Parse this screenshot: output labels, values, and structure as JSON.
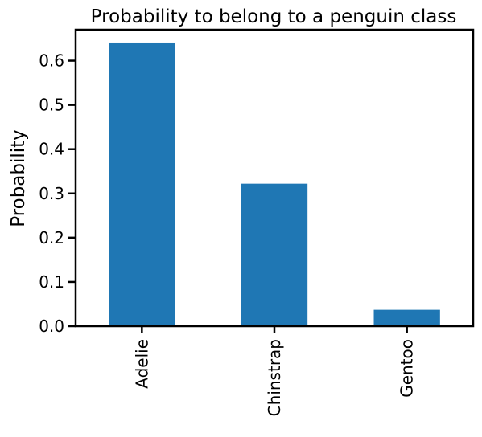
{
  "chart_data": {
    "type": "bar",
    "title": "Probability to belong to a penguin class",
    "xlabel": "",
    "ylabel": "Probability",
    "categories": [
      "Adelie",
      "Chinstrap",
      "Gentoo"
    ],
    "values": [
      0.641,
      0.322,
      0.037
    ],
    "ylim": [
      0,
      0.67
    ],
    "yticks": [
      0.0,
      0.1,
      0.2,
      0.3,
      0.4,
      0.5,
      0.6
    ],
    "ytick_labels": [
      "0.0",
      "0.1",
      "0.2",
      "0.3",
      "0.4",
      "0.5",
      "0.6"
    ],
    "bar_color": "#1f77b4",
    "grid": false,
    "legend": "none"
  }
}
